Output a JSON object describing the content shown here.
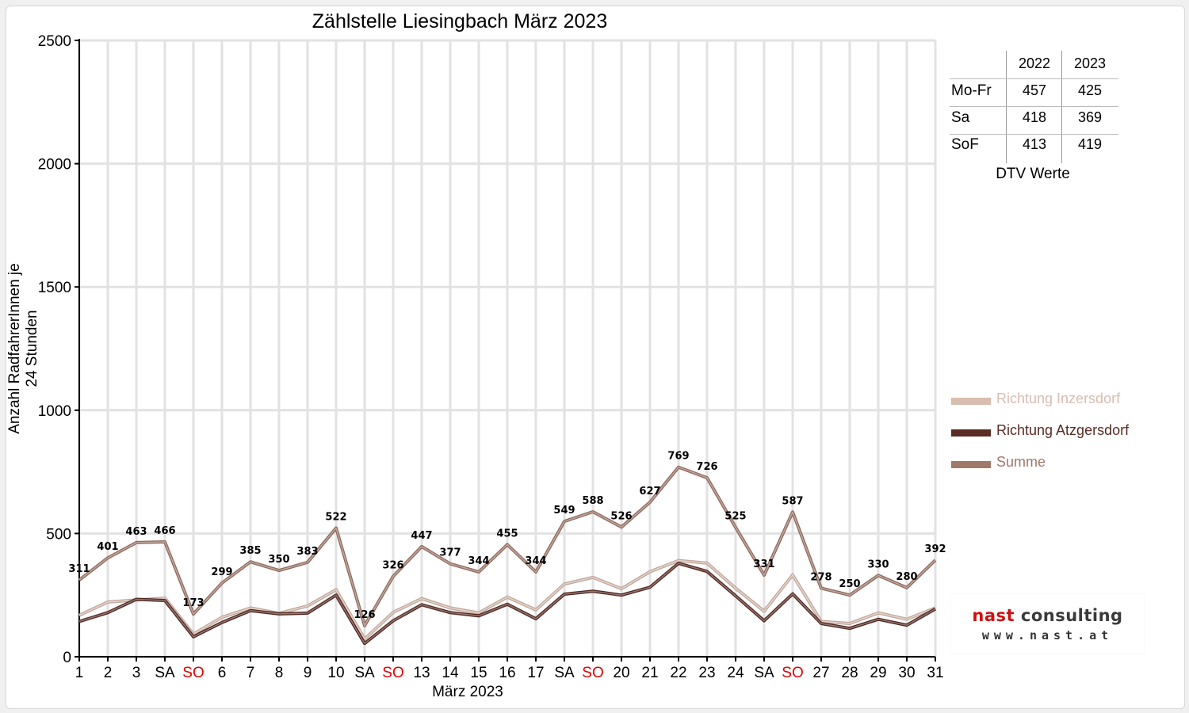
{
  "chart_data": {
    "type": "line",
    "title": "Zählstelle Liesingbach März 2023",
    "xlabel": "März 2023",
    "ylabel": "Anzahl RadfahrerInnen je 24 Stunden",
    "ylim": [
      0,
      2500
    ],
    "yticks": [
      "0",
      "500",
      "1000",
      "1500",
      "2000",
      "2500"
    ],
    "grid": true,
    "legend_position": "right",
    "categories": [
      "1",
      "2",
      "3",
      "SA",
      "SO",
      "6",
      "7",
      "8",
      "9",
      "10",
      "SA",
      "SO",
      "13",
      "14",
      "15",
      "16",
      "17",
      "SA",
      "SO",
      "20",
      "21",
      "22",
      "23",
      "24",
      "SA",
      "SO",
      "27",
      "28",
      "29",
      "30",
      "31"
    ],
    "category_colors": [
      "#000",
      "#000",
      "#000",
      "#000",
      "#e00000",
      "#000",
      "#000",
      "#000",
      "#000",
      "#000",
      "#000",
      "#e00000",
      "#000",
      "#000",
      "#000",
      "#000",
      "#000",
      "#000",
      "#e00000",
      "#000",
      "#000",
      "#000",
      "#000",
      "#000",
      "#000",
      "#e00000",
      "#000",
      "#000",
      "#000",
      "#000",
      "#000"
    ],
    "series": [
      {
        "name": "Richtung Inzersdorf",
        "color": "#d8bdb0",
        "values": [
          168,
          222,
          230,
          238,
          92,
          160,
          198,
          176,
          206,
          272,
          72,
          180,
          236,
          198,
          178,
          242,
          190,
          295,
          322,
          276,
          345,
          390,
          380,
          278,
          185,
          332,
          143,
          135,
          178,
          152,
          198
        ]
      },
      {
        "name": "Richtung Atzgersdorf",
        "color": "#5a2c24",
        "values": [
          143,
          179,
          233,
          228,
          81,
          139,
          187,
          174,
          177,
          250,
          54,
          146,
          211,
          179,
          166,
          213,
          154,
          254,
          266,
          250,
          282,
          379,
          346,
          247,
          146,
          255,
          135,
          115,
          152,
          128,
          194
        ]
      },
      {
        "name": "Summe",
        "color": "#a0786a",
        "values": [
          311,
          401,
          463,
          466,
          173,
          299,
          385,
          350,
          383,
          522,
          126,
          326,
          447,
          377,
          344,
          455,
          344,
          549,
          588,
          526,
          627,
          769,
          726,
          525,
          331,
          587,
          278,
          250,
          330,
          280,
          392
        ]
      }
    ]
  },
  "dtv_table": {
    "headers": [
      "",
      "2022",
      "2023"
    ],
    "rows": [
      {
        "label": "Mo-Fr",
        "v2022": "457",
        "v2023": "425"
      },
      {
        "label": "Sa",
        "v2022": "418",
        "v2023": "369"
      },
      {
        "label": "SoF",
        "v2022": "413",
        "v2023": "419"
      }
    ],
    "caption": "DTV Werte"
  },
  "logo": {
    "name_part1": "nast",
    "name_part2": " consulting",
    "url": "www.nast.at",
    "color_part1": "#d01010",
    "color_part2": "#3a3a3a"
  }
}
